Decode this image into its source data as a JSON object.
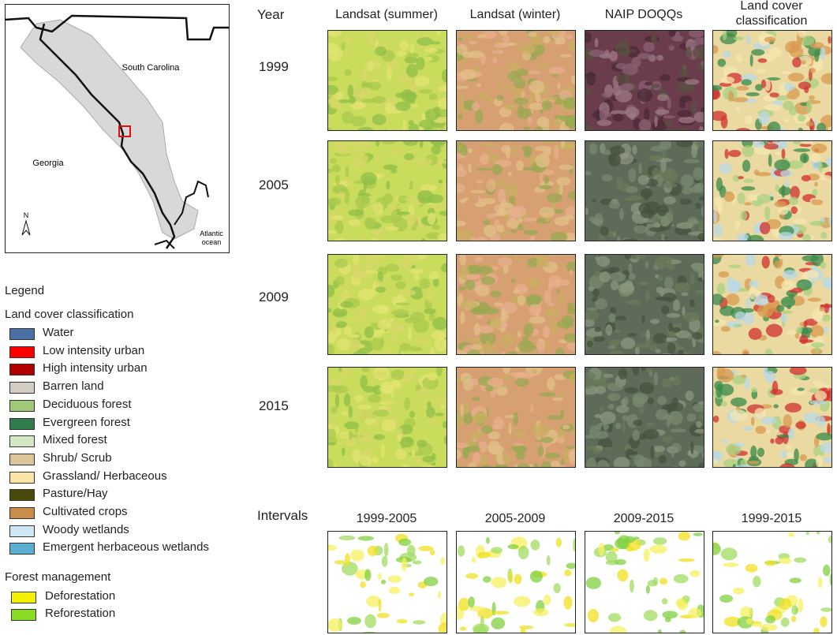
{
  "locator_map": {
    "state_labels": [
      "South Carolina",
      "Georgia"
    ],
    "north_label": "N",
    "ocean_label": [
      "Atlantic",
      "ocean"
    ]
  },
  "legend": {
    "title": "Legend",
    "land_cover": {
      "title": "Land cover classification",
      "items": [
        {
          "label": "Water",
          "color": "#4a6fa5"
        },
        {
          "label": "Low intensity urban",
          "color": "#ff0000"
        },
        {
          "label": "High intensity urban",
          "color": "#b00000"
        },
        {
          "label": "Barren land",
          "color": "#d3cdc5"
        },
        {
          "label": "Deciduous forest",
          "color": "#a2c77a"
        },
        {
          "label": "Evergreen forest",
          "color": "#2e7d4a"
        },
        {
          "label": "Mixed forest",
          "color": "#d4e8c4"
        },
        {
          "label": "Shrub/ Scrub",
          "color": "#dcc596"
        },
        {
          "label": "Grassland/ Herbaceous",
          "color": "#fbe4a8"
        },
        {
          "label": "Pasture/Hay",
          "color": "#4a4a0a"
        },
        {
          "label": "Cultivated crops",
          "color": "#c98d4a"
        },
        {
          "label": "Woody wetlands",
          "color": "#cfe6f4"
        },
        {
          "label": "Emergent herbaceous wetlands",
          "color": "#5aaed0"
        }
      ]
    },
    "forest_management": {
      "title": "Forest management",
      "items": [
        {
          "label": "Deforestation",
          "color": "#f5f000"
        },
        {
          "label": "Reforestation",
          "color": "#88dd22"
        }
      ]
    }
  },
  "panels": {
    "year_header": "Year",
    "columns": [
      "Landsat (summer)",
      "Landsat (winter)",
      "NAIP DOQQs",
      "Land cover classification"
    ],
    "years": [
      "1999",
      "2005",
      "2009",
      "2015"
    ],
    "intervals_label": "Intervals",
    "intervals": [
      "1999-2005",
      "2005-2009",
      "2009-2015",
      "1999-2015"
    ]
  }
}
